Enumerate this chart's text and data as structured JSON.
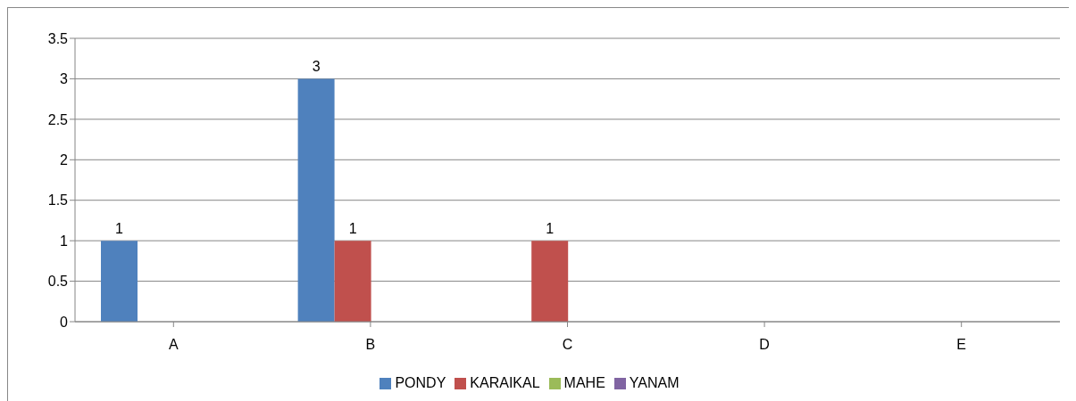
{
  "chart_data": {
    "type": "bar",
    "categories": [
      "A",
      "B",
      "C",
      "D",
      "E"
    ],
    "series": [
      {
        "name": "PONDY",
        "color": "#4f81bd",
        "values": [
          1,
          3,
          null,
          null,
          null
        ]
      },
      {
        "name": "KARAIKAL",
        "color": "#c0504d",
        "values": [
          null,
          1,
          1,
          null,
          null
        ]
      },
      {
        "name": "MAHE",
        "color": "#9bbb59",
        "values": [
          null,
          null,
          null,
          null,
          null
        ]
      },
      {
        "name": "YANAM",
        "color": "#8064a2",
        "values": [
          null,
          null,
          null,
          null,
          null
        ]
      }
    ],
    "ylim": [
      0,
      3.5
    ],
    "yticks": [
      0,
      0.5,
      1,
      1.5,
      2,
      2.5,
      3,
      3.5
    ],
    "grid": "y",
    "legend": "bottom",
    "data_labels": true
  }
}
